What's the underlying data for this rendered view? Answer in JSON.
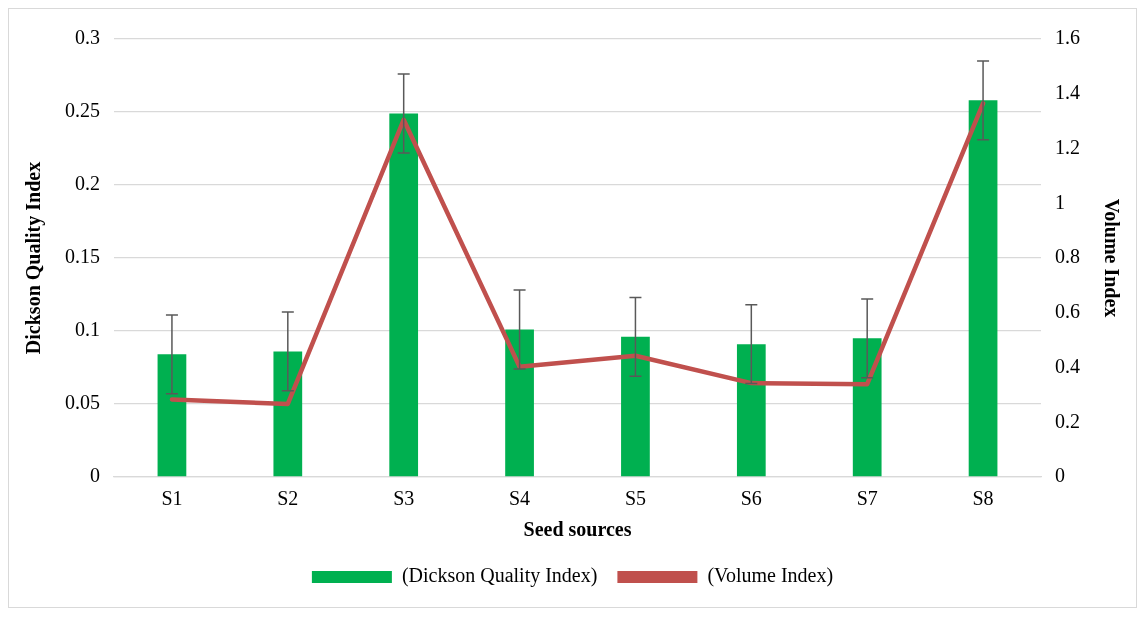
{
  "chart_data": {
    "type": "bar",
    "xlabel": "Seed sources",
    "ylabel": "Dickson Quality Index",
    "y2label": "Volume Index",
    "categories": [
      "S1",
      "S2",
      "S3",
      "S4",
      "S5",
      "S6",
      "S7",
      "S8"
    ],
    "series": [
      {
        "name": "(Dickson Quality Index)",
        "color": "#00b050",
        "values": [
          0.084,
          0.086,
          0.249,
          0.101,
          0.096,
          0.091,
          0.095,
          0.258
        ],
        "errors": [
          0.027,
          0.027,
          0.027,
          0.027,
          0.027,
          0.027,
          0.027,
          0.027
        ]
      },
      {
        "name": "(Volume Index)",
        "type": "line",
        "axis": "y2",
        "color": "#c0504d",
        "values": [
          0.283,
          0.267,
          1.305,
          0.403,
          0.443,
          0.343,
          0.339,
          1.365
        ]
      }
    ],
    "ylim": [
      0,
      0.3
    ],
    "yticks": [
      {
        "value": 0,
        "label": "0"
      },
      0.05,
      0.1,
      0.15,
      0.2,
      0.25,
      0.3
    ],
    "y2lim": [
      0,
      1.6
    ],
    "y2ticks": [
      {
        "value": 0,
        "label": "0"
      },
      0.2,
      0.4,
      0.6,
      0.8,
      1,
      1.2,
      1.4,
      1.6
    ],
    "grid": "y",
    "legend": "bottom",
    "marker": "none"
  }
}
